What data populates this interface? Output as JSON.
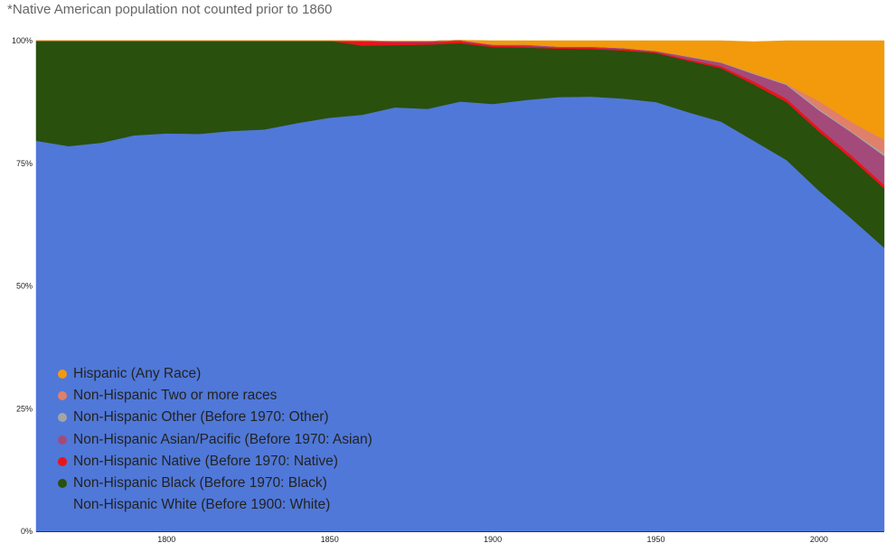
{
  "note": "*Native American population not counted prior to 1860",
  "chart_data": {
    "type": "area",
    "stacked": true,
    "normalized": true,
    "title": "",
    "xlabel": "",
    "ylabel": "",
    "xlim": [
      1760,
      2020
    ],
    "ylim": [
      0,
      100
    ],
    "x_ticks": [
      "1800",
      "1850",
      "1900",
      "1950",
      "2000"
    ],
    "y_ticks": [
      "0%",
      "25%",
      "50%",
      "75%",
      "100%"
    ],
    "legend_position": "bottom-left",
    "x": [
      1760,
      1770,
      1780,
      1790,
      1800,
      1810,
      1820,
      1830,
      1840,
      1850,
      1860,
      1870,
      1880,
      1890,
      1900,
      1910,
      1920,
      1930,
      1940,
      1950,
      1960,
      1970,
      1980,
      1990,
      2000,
      2010,
      2020
    ],
    "series": [
      {
        "name": "Non-Hispanic White (Before 1900: White)",
        "color": "#5078d8",
        "values": [
          79.6,
          78.5,
          79.2,
          80.7,
          81.1,
          81.0,
          81.6,
          81.9,
          83.2,
          84.3,
          84.9,
          86.4,
          86.1,
          87.6,
          87.1,
          87.9,
          88.5,
          88.6,
          88.2,
          87.5,
          85.4,
          83.5,
          79.6,
          75.7,
          69.4,
          63.7,
          57.8
        ]
      },
      {
        "name": "Non-Hispanic Black (Before 1970: Black)",
        "color": "#29500d",
        "values": [
          20.4,
          21.5,
          20.8,
          19.3,
          18.9,
          19.0,
          18.4,
          18.1,
          16.8,
          15.7,
          14.1,
          12.7,
          13.1,
          11.9,
          11.6,
          10.7,
          9.9,
          9.7,
          9.8,
          10.0,
          10.5,
          10.9,
          11.5,
          11.8,
          12.1,
          12.2,
          12.1
        ]
      },
      {
        "name": "Non-Hispanic Native (Before 1970: Native)",
        "color": "#e8141c",
        "values": [
          0,
          0,
          0,
          0,
          0,
          0,
          0,
          0,
          0,
          0,
          0.9,
          0.6,
          0.5,
          0.4,
          0.3,
          0.3,
          0.2,
          0.3,
          0.3,
          0.2,
          0.3,
          0.4,
          0.6,
          0.7,
          0.7,
          0.7,
          0.7
        ]
      },
      {
        "name": "Non-Hispanic Asian/Pacific (Before 1970: Asian)",
        "color": "#a34a7a",
        "values": [
          0,
          0,
          0,
          0,
          0,
          0,
          0,
          0,
          0,
          0,
          0.1,
          0.2,
          0.2,
          0.2,
          0.2,
          0.3,
          0.2,
          0.2,
          0.2,
          0.2,
          0.5,
          0.7,
          1.5,
          2.8,
          3.6,
          4.7,
          5.9
        ]
      },
      {
        "name": "Non-Hispanic Other (Before 1970: Other)",
        "color": "#a5a5a5",
        "values": [
          0,
          0,
          0,
          0,
          0,
          0,
          0,
          0,
          0,
          0,
          0,
          0,
          0,
          0,
          0,
          0,
          0,
          0,
          0,
          0,
          0.1,
          0.1,
          0.2,
          0.2,
          0.3,
          0.2,
          0.5
        ]
      },
      {
        "name": "Non-Hispanic Two or more races",
        "color": "#e0806a",
        "values": [
          0,
          0,
          0,
          0,
          0,
          0,
          0,
          0,
          0,
          0,
          0,
          0,
          0,
          0,
          0,
          0,
          0,
          0,
          0,
          0,
          0,
          0,
          0,
          0,
          1.6,
          1.9,
          2.8
        ]
      },
      {
        "name": "Hispanic (Any Race)",
        "color": "#f29a0c",
        "values": [
          0,
          0,
          0,
          0,
          0,
          0,
          0,
          0,
          0,
          0,
          0,
          0,
          0,
          0,
          0.8,
          0.8,
          1.2,
          1.2,
          1.5,
          2.1,
          3.2,
          4.4,
          6.4,
          8.8,
          12.3,
          16.6,
          20.2
        ]
      }
    ]
  }
}
